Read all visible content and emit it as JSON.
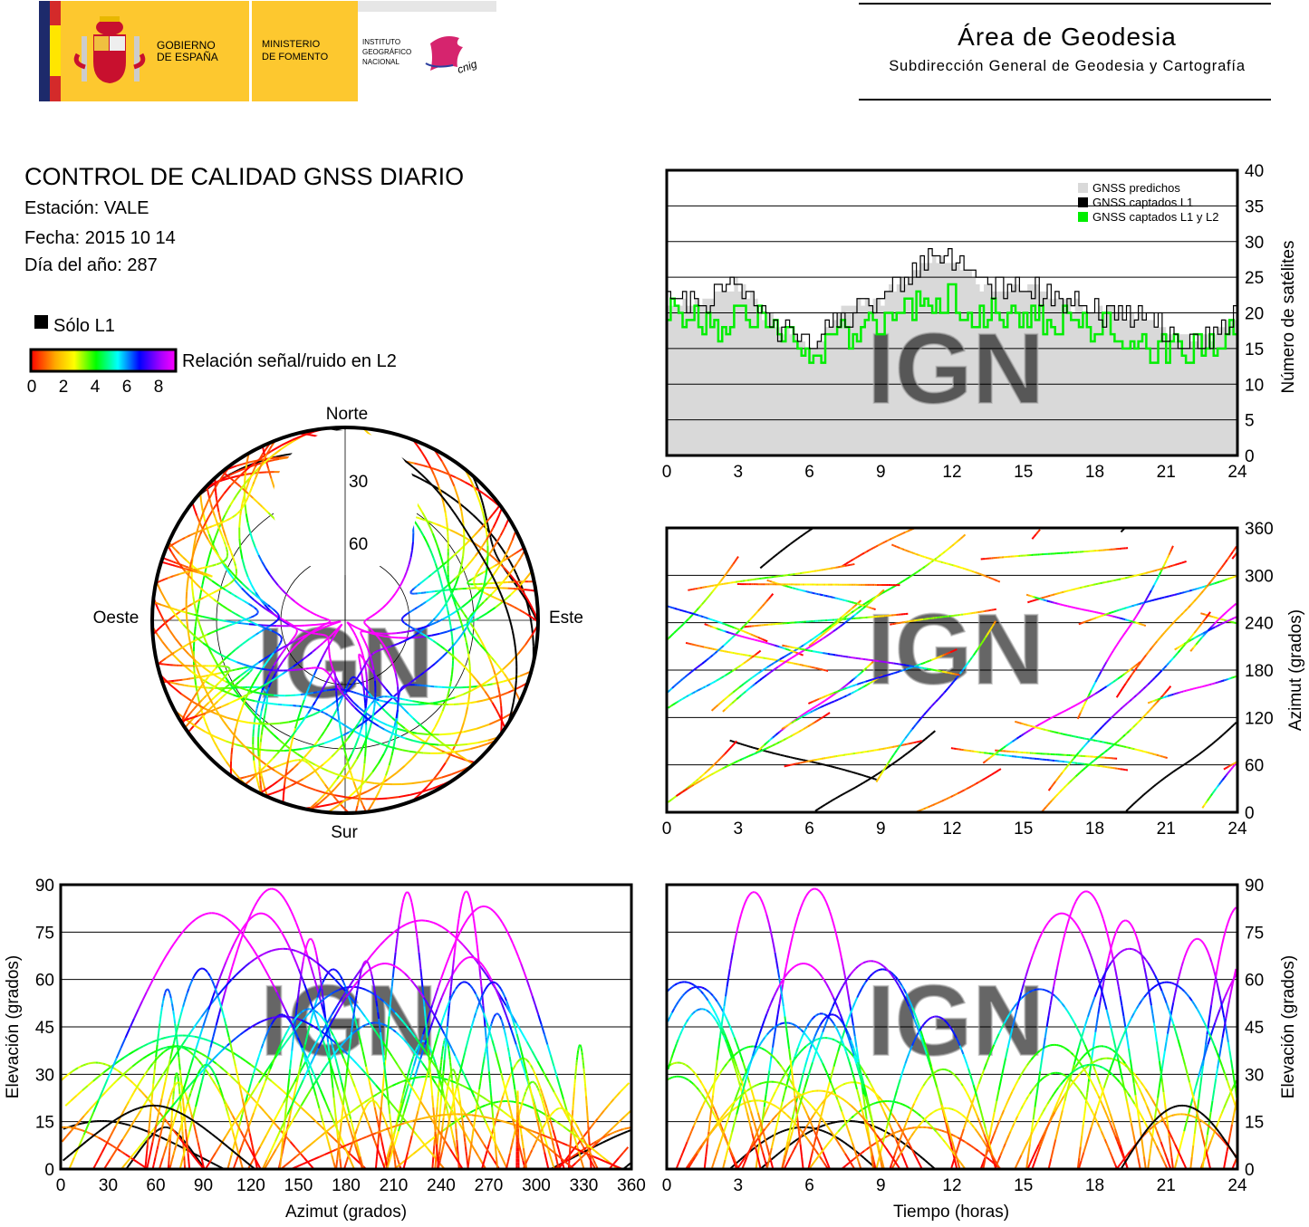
{
  "logo": {
    "gov1": "GOBIERNO",
    "gov2": "DE ESPAÑA",
    "min1": "MINISTERIO",
    "min2": "DE FOMENTO",
    "ign1": "INSTITUTO",
    "ign2": "GEOGRÁFICO",
    "ign3": "NACIONAL",
    "cnig": "cnig"
  },
  "header": {
    "title": "Área de Geodesia",
    "subtitle": "Subdirección General de Geodesia y Cartografía"
  },
  "report": {
    "title": "CONTROL DE CALIDAD GNSS DIARIO",
    "station": "Estación: VALE",
    "date": "Fecha: 2015 10 14",
    "doy": "Día del año: 287"
  },
  "legend": {
    "only_l1": "Sólo L1",
    "snr_label": "Relación señal/ruido en L2",
    "snr_ticks": [
      "0",
      "2",
      "4",
      "6",
      "8"
    ]
  },
  "colors": {
    "predicted": "#d9d9d9",
    "l1": "#000000",
    "l1l2": "#00ee00"
  },
  "watermark": "IGN",
  "chart_data": [
    {
      "type": "area",
      "title": "Número de satélites",
      "ylabel": "Número de satélites",
      "xlabel": "",
      "ylim": [
        0,
        40
      ],
      "xlim": [
        0,
        24
      ],
      "xticks": [
        "0",
        "3",
        "6",
        "9",
        "12",
        "15",
        "18",
        "21",
        "24"
      ],
      "yticks": [
        "0",
        "5",
        "10",
        "15",
        "20",
        "25",
        "30",
        "35",
        "40"
      ],
      "legend": [
        "GNSS predichos",
        "GNSS captados L1",
        "GNSS captados L1 y L2"
      ],
      "legend_position": "top-right",
      "x": [
        0,
        1,
        2,
        3,
        4,
        5,
        6,
        7,
        8,
        9,
        10,
        11,
        12,
        13,
        14,
        15,
        16,
        17,
        18,
        19,
        20,
        21,
        22,
        23,
        24
      ],
      "series": [
        {
          "name": "GNSS predichos",
          "values": [
            22,
            21,
            22,
            24,
            20,
            17,
            15,
            19,
            21,
            22,
            25,
            28,
            27,
            24,
            23,
            24,
            22,
            21,
            20,
            20,
            19,
            17,
            16,
            17,
            20
          ]
        },
        {
          "name": "GNSS captados L1",
          "values": [
            22,
            21,
            22,
            24,
            20,
            17,
            15,
            19,
            21,
            22,
            25,
            28,
            27,
            24,
            23,
            24,
            22,
            21,
            20,
            20,
            19,
            17,
            16,
            17,
            20
          ]
        },
        {
          "name": "GNSS captados L1 y L2",
          "values": [
            20,
            19,
            18,
            19,
            19,
            16,
            14,
            17,
            18,
            19,
            21,
            22,
            22,
            20,
            19,
            19,
            19,
            18,
            18,
            17,
            16,
            15,
            15,
            16,
            17
          ]
        }
      ]
    },
    {
      "type": "scatter",
      "ylabel": "Azimut (grados)",
      "ylim": [
        0,
        360
      ],
      "xlim": [
        0,
        24
      ],
      "xticks": [
        "0",
        "3",
        "6",
        "9",
        "12",
        "15",
        "18",
        "21",
        "24"
      ],
      "yticks": [
        "0",
        "60",
        "120",
        "180",
        "240",
        "300",
        "360"
      ]
    },
    {
      "type": "scatter",
      "xlabel": "Azimut (grados)",
      "ylabel": "Elevación (grados)",
      "xlim": [
        0,
        360
      ],
      "ylim": [
        0,
        90
      ],
      "xticks": [
        "0",
        "30",
        "60",
        "90",
        "120",
        "150",
        "180",
        "210",
        "240",
        "270",
        "300",
        "330",
        "360"
      ],
      "yticks": [
        "0",
        "15",
        "30",
        "45",
        "60",
        "75",
        "90"
      ]
    },
    {
      "type": "scatter",
      "xlabel": "Tiempo (horas)",
      "ylabel": "Elevación (grados)",
      "xlim": [
        0,
        24
      ],
      "ylim": [
        0,
        90
      ],
      "xticks": [
        "0",
        "3",
        "6",
        "9",
        "12",
        "15",
        "18",
        "21",
        "24"
      ],
      "yticks": [
        "0",
        "15",
        "30",
        "45",
        "60",
        "75",
        "90"
      ]
    },
    {
      "type": "scatter",
      "title": "skyplot",
      "directions": {
        "n": "Norte",
        "s": "Sur",
        "w": "Oeste",
        "e": "Este"
      },
      "rings": [
        "30",
        "60"
      ]
    }
  ]
}
